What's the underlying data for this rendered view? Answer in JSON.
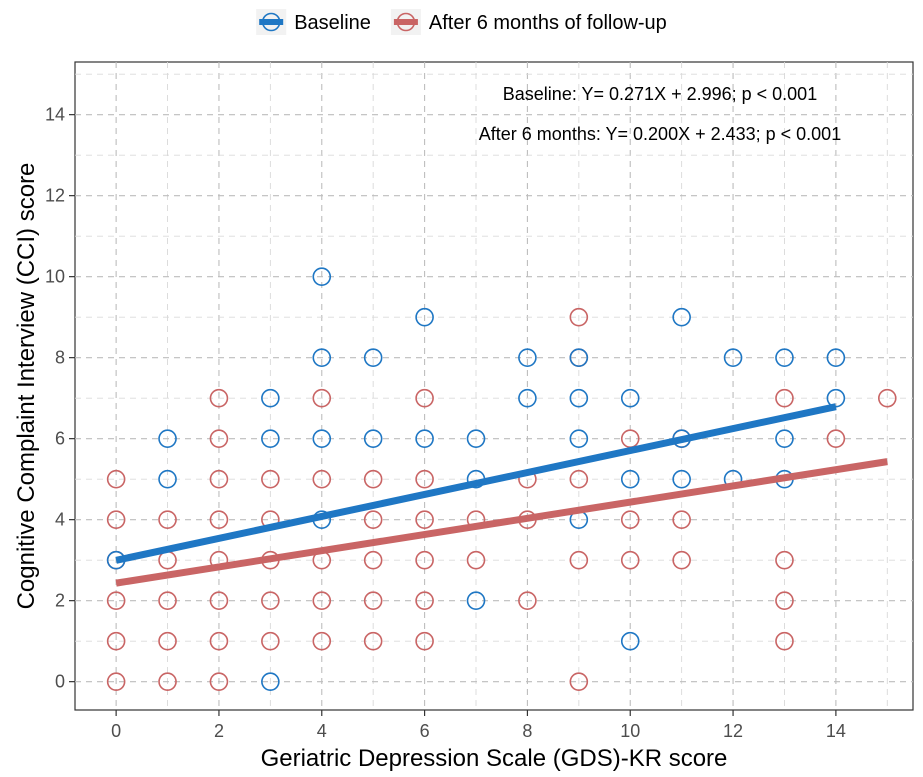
{
  "chart_data": {
    "type": "scatter",
    "xlabel": "Geriatric Depression Scale (GDS)-KR score",
    "ylabel": "Cognitive Complaint Interview (CCI) score",
    "xlim": [
      -0.8,
      15.5
    ],
    "ylim": [
      -0.7,
      15.3
    ],
    "x_ticks": [
      "0",
      "2",
      "4",
      "6",
      "8",
      "10",
      "12",
      "14"
    ],
    "y_ticks": [
      "0",
      "2",
      "4",
      "6",
      "8",
      "10",
      "12",
      "14"
    ],
    "grid": true,
    "legend_position": "top",
    "annotations": [
      "Baseline: Y= 0.271X + 2.996; p < 0.001",
      "After 6 months: Y= 0.200X + 2.433; p < 0.001"
    ],
    "series": [
      {
        "name": "Baseline",
        "color": "#1f77c4",
        "points": [
          [
            0,
            3
          ],
          [
            1,
            5
          ],
          [
            1,
            6
          ],
          [
            3,
            0
          ],
          [
            3,
            6
          ],
          [
            3,
            7
          ],
          [
            4,
            4
          ],
          [
            4,
            6
          ],
          [
            4,
            8
          ],
          [
            4,
            10
          ],
          [
            5,
            6
          ],
          [
            5,
            8
          ],
          [
            6,
            6
          ],
          [
            6,
            9
          ],
          [
            7,
            2
          ],
          [
            7,
            5
          ],
          [
            7,
            6
          ],
          [
            8,
            7
          ],
          [
            8,
            8
          ],
          [
            9,
            4
          ],
          [
            9,
            6
          ],
          [
            9,
            7
          ],
          [
            9,
            8
          ],
          [
            10,
            1
          ],
          [
            10,
            5
          ],
          [
            10,
            7
          ],
          [
            11,
            5
          ],
          [
            11,
            6
          ],
          [
            11,
            9
          ],
          [
            12,
            5
          ],
          [
            12,
            8
          ],
          [
            13,
            5
          ],
          [
            13,
            6
          ],
          [
            13,
            8
          ],
          [
            14,
            7
          ],
          [
            14,
            8
          ]
        ],
        "fit": {
          "slope": 0.271,
          "intercept": 2.996,
          "x_range": [
            0,
            14
          ]
        }
      },
      {
        "name": "After 6 months of follow-up",
        "color": "#c96565",
        "points": [
          [
            0,
            0
          ],
          [
            0,
            1
          ],
          [
            0,
            2
          ],
          [
            0,
            3
          ],
          [
            0,
            4
          ],
          [
            0,
            5
          ],
          [
            1,
            0
          ],
          [
            1,
            1
          ],
          [
            1,
            2
          ],
          [
            1,
            3
          ],
          [
            1,
            4
          ],
          [
            2,
            0
          ],
          [
            2,
            1
          ],
          [
            2,
            2
          ],
          [
            2,
            3
          ],
          [
            2,
            4
          ],
          [
            2,
            5
          ],
          [
            2,
            6
          ],
          [
            2,
            7
          ],
          [
            3,
            1
          ],
          [
            3,
            2
          ],
          [
            3,
            3
          ],
          [
            3,
            4
          ],
          [
            3,
            5
          ],
          [
            4,
            1
          ],
          [
            4,
            2
          ],
          [
            4,
            3
          ],
          [
            4,
            5
          ],
          [
            4,
            7
          ],
          [
            5,
            1
          ],
          [
            5,
            2
          ],
          [
            5,
            3
          ],
          [
            5,
            4
          ],
          [
            5,
            5
          ],
          [
            6,
            1
          ],
          [
            6,
            2
          ],
          [
            6,
            3
          ],
          [
            6,
            4
          ],
          [
            6,
            5
          ],
          [
            6,
            7
          ],
          [
            7,
            3
          ],
          [
            7,
            4
          ],
          [
            8,
            2
          ],
          [
            8,
            4
          ],
          [
            8,
            5
          ],
          [
            9,
            0
          ],
          [
            9,
            3
          ],
          [
            9,
            5
          ],
          [
            9,
            8
          ],
          [
            9,
            9
          ],
          [
            10,
            3
          ],
          [
            10,
            4
          ],
          [
            10,
            6
          ],
          [
            11,
            3
          ],
          [
            11,
            4
          ],
          [
            11,
            6
          ],
          [
            13,
            1
          ],
          [
            13,
            2
          ],
          [
            13,
            3
          ],
          [
            13,
            7
          ],
          [
            14,
            6
          ],
          [
            15,
            7
          ]
        ],
        "fit": {
          "slope": 0.2,
          "intercept": 2.433,
          "x_range": [
            0,
            15
          ]
        }
      }
    ]
  }
}
